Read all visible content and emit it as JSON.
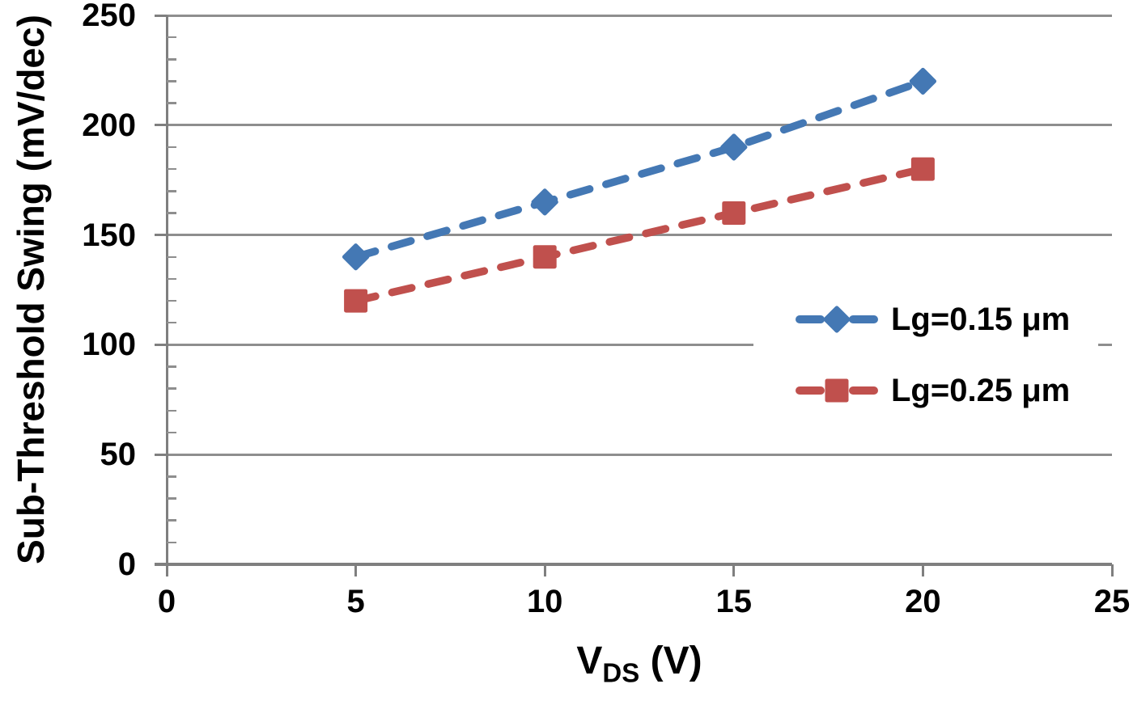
{
  "chart_data": {
    "type": "line",
    "line_style": "dashed",
    "x": [
      5,
      10,
      15,
      20
    ],
    "series": [
      {
        "name": "Lg=0.15 μm",
        "color": "#4478B4",
        "marker": "diamond",
        "values": [
          140,
          165,
          190,
          220
        ]
      },
      {
        "name": "Lg=0.25 μm",
        "color": "#C0504D",
        "marker": "square",
        "values": [
          120,
          140,
          160,
          180
        ]
      }
    ],
    "title": "",
    "xlabel": "VDS (V)",
    "xlabel_parts": {
      "main": "V",
      "sub": "DS",
      "rest": " (V)"
    },
    "ylabel": "Sub-Threshold Swing (mV/dec)",
    "xlim": [
      0,
      25
    ],
    "ylim": [
      0,
      250
    ],
    "x_ticks": [
      0,
      5,
      10,
      15,
      20,
      25
    ],
    "y_ticks": [
      0,
      50,
      100,
      150,
      200,
      250
    ],
    "y_minor_step": 10,
    "grid": "horizontal-major",
    "legend_position": "inside-right",
    "colors": {
      "grid": "#8E8E8E",
      "axis": "#7F7F7F",
      "text": "#000000",
      "background": "#FFFFFF"
    }
  }
}
